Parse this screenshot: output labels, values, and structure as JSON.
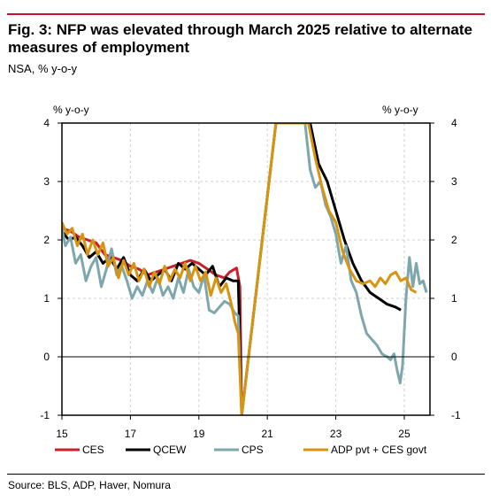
{
  "title": "Fig. 3: NFP was elevated through March 2025 relative to alternate measures of employment",
  "subtitle": "NSA, % y-o-y",
  "source": "Source: BLS, ADP, Haver, Nomura",
  "colors": {
    "accent_rule": "#c8102e",
    "grid": "#d0d0d0"
  },
  "chart_data": {
    "type": "line",
    "ylabel_left": "% y-o-y",
    "ylabel_right": "% y-o-y",
    "xlim": [
      2015,
      2025.75
    ],
    "ylim": [
      -1,
      4
    ],
    "xticks": [
      2015,
      2017,
      2019,
      2021,
      2023,
      2025
    ],
    "xtick_labels": [
      "15",
      "17",
      "19",
      "21",
      "23",
      "25"
    ],
    "yticks": [
      -1,
      0,
      1,
      2,
      3,
      4
    ],
    "ytick_labels": [
      "-1",
      "0",
      "1",
      "2",
      "3",
      "4"
    ],
    "grid": true,
    "legend_position": "bottom",
    "series": [
      {
        "name": "CES",
        "color": "#c8202a",
        "points": [
          [
            2015.0,
            2.2
          ],
          [
            2015.25,
            2.15
          ],
          [
            2015.5,
            2.05
          ],
          [
            2015.75,
            2.0
          ],
          [
            2016.0,
            1.95
          ],
          [
            2016.25,
            1.75
          ],
          [
            2016.5,
            1.7
          ],
          [
            2016.75,
            1.65
          ],
          [
            2017.0,
            1.55
          ],
          [
            2017.25,
            1.5
          ],
          [
            2017.5,
            1.4
          ],
          [
            2017.75,
            1.45
          ],
          [
            2018.0,
            1.5
          ],
          [
            2018.25,
            1.55
          ],
          [
            2018.5,
            1.6
          ],
          [
            2018.75,
            1.65
          ],
          [
            2019.0,
            1.6
          ],
          [
            2019.25,
            1.5
          ],
          [
            2019.5,
            1.4
          ],
          [
            2019.75,
            1.35
          ],
          [
            2019.9,
            1.45
          ],
          [
            2020.1,
            1.52
          ],
          [
            2020.2,
            1.2
          ],
          [
            2020.25,
            -1.0
          ]
        ]
      },
      {
        "name": "QCEW",
        "color": "#000000",
        "points": [
          [
            2015.0,
            2.15
          ],
          [
            2015.2,
            2.0
          ],
          [
            2015.4,
            2.05
          ],
          [
            2015.6,
            1.9
          ],
          [
            2015.8,
            1.7
          ],
          [
            2016.0,
            1.8
          ],
          [
            2016.2,
            1.6
          ],
          [
            2016.4,
            1.7
          ],
          [
            2016.6,
            1.5
          ],
          [
            2016.8,
            1.7
          ],
          [
            2017.0,
            1.4
          ],
          [
            2017.2,
            1.3
          ],
          [
            2017.4,
            1.5
          ],
          [
            2017.6,
            1.3
          ],
          [
            2017.8,
            1.4
          ],
          [
            2018.0,
            1.5
          ],
          [
            2018.2,
            1.3
          ],
          [
            2018.4,
            1.6
          ],
          [
            2018.6,
            1.5
          ],
          [
            2018.8,
            1.6
          ],
          [
            2019.0,
            1.5
          ],
          [
            2019.2,
            1.4
          ],
          [
            2019.4,
            1.55
          ],
          [
            2019.6,
            1.2
          ],
          [
            2019.8,
            1.35
          ],
          [
            2020.0,
            1.3
          ],
          [
            2020.15,
            1.3
          ],
          [
            2020.25,
            -1.0
          ],
          [
            2021.25,
            4.0
          ],
          [
            2022.25,
            4.0
          ],
          [
            2022.5,
            3.3
          ],
          [
            2022.75,
            3.0
          ],
          [
            2023.0,
            2.5
          ],
          [
            2023.25,
            2.0
          ],
          [
            2023.5,
            1.6
          ],
          [
            2023.75,
            1.3
          ],
          [
            2024.0,
            1.1
          ],
          [
            2024.25,
            1.0
          ],
          [
            2024.5,
            0.9
          ],
          [
            2024.75,
            0.85
          ],
          [
            2024.9,
            0.8
          ]
        ]
      },
      {
        "name": "CPS",
        "color": "#7ea6ad",
        "points": [
          [
            2015.0,
            2.2
          ],
          [
            2015.1,
            1.9
          ],
          [
            2015.25,
            2.05
          ],
          [
            2015.4,
            1.6
          ],
          [
            2015.55,
            1.75
          ],
          [
            2015.7,
            1.3
          ],
          [
            2015.85,
            1.55
          ],
          [
            2016.0,
            1.7
          ],
          [
            2016.15,
            1.2
          ],
          [
            2016.3,
            1.5
          ],
          [
            2016.45,
            1.85
          ],
          [
            2016.6,
            1.4
          ],
          [
            2016.75,
            1.55
          ],
          [
            2016.9,
            1.3
          ],
          [
            2017.05,
            1.0
          ],
          [
            2017.2,
            1.2
          ],
          [
            2017.35,
            1.05
          ],
          [
            2017.5,
            1.3
          ],
          [
            2017.65,
            1.1
          ],
          [
            2017.8,
            1.35
          ],
          [
            2017.95,
            1.05
          ],
          [
            2018.1,
            1.2
          ],
          [
            2018.25,
            1.0
          ],
          [
            2018.4,
            1.35
          ],
          [
            2018.55,
            1.1
          ],
          [
            2018.7,
            1.5
          ],
          [
            2018.85,
            1.2
          ],
          [
            2019.0,
            1.1
          ],
          [
            2019.15,
            1.4
          ],
          [
            2019.3,
            0.8
          ],
          [
            2019.45,
            0.75
          ],
          [
            2019.6,
            0.85
          ],
          [
            2019.75,
            0.95
          ],
          [
            2019.9,
            0.9
          ],
          [
            2020.05,
            0.75
          ],
          [
            2020.15,
            0.7
          ],
          [
            2020.25,
            -1.0
          ],
          [
            2021.25,
            4.0
          ],
          [
            2022.1,
            4.0
          ],
          [
            2022.25,
            3.2
          ],
          [
            2022.4,
            2.9
          ],
          [
            2022.55,
            3.0
          ],
          [
            2022.7,
            2.6
          ],
          [
            2022.85,
            2.4
          ],
          [
            2023.0,
            2.1
          ],
          [
            2023.15,
            1.6
          ],
          [
            2023.3,
            1.9
          ],
          [
            2023.45,
            1.3
          ],
          [
            2023.6,
            1.1
          ],
          [
            2023.75,
            0.7
          ],
          [
            2023.9,
            0.4
          ],
          [
            2024.05,
            0.3
          ],
          [
            2024.2,
            0.2
          ],
          [
            2024.35,
            0.05
          ],
          [
            2024.5,
            0.0
          ],
          [
            2024.6,
            -0.05
          ],
          [
            2024.7,
            0.05
          ],
          [
            2024.8,
            -0.25
          ],
          [
            2024.88,
            -0.45
          ],
          [
            2024.95,
            -0.15
          ],
          [
            2025.05,
            1.0
          ],
          [
            2025.15,
            1.7
          ],
          [
            2025.25,
            1.2
          ],
          [
            2025.35,
            1.6
          ],
          [
            2025.45,
            1.25
          ],
          [
            2025.55,
            1.3
          ],
          [
            2025.65,
            1.1
          ]
        ]
      },
      {
        "name": "ADP pvt + CES govt",
        "color": "#d9940f",
        "points": [
          [
            2015.0,
            2.3
          ],
          [
            2015.15,
            2.1
          ],
          [
            2015.3,
            2.2
          ],
          [
            2015.45,
            1.9
          ],
          [
            2015.6,
            2.1
          ],
          [
            2015.75,
            1.75
          ],
          [
            2015.9,
            2.0
          ],
          [
            2016.05,
            1.75
          ],
          [
            2016.2,
            1.95
          ],
          [
            2016.35,
            1.55
          ],
          [
            2016.5,
            1.7
          ],
          [
            2016.65,
            1.35
          ],
          [
            2016.8,
            1.65
          ],
          [
            2016.95,
            1.4
          ],
          [
            2017.1,
            1.6
          ],
          [
            2017.25,
            1.3
          ],
          [
            2017.4,
            1.5
          ],
          [
            2017.55,
            1.2
          ],
          [
            2017.7,
            1.45
          ],
          [
            2017.85,
            1.25
          ],
          [
            2018.0,
            1.55
          ],
          [
            2018.15,
            1.3
          ],
          [
            2018.3,
            1.5
          ],
          [
            2018.45,
            1.35
          ],
          [
            2018.6,
            1.6
          ],
          [
            2018.75,
            1.3
          ],
          [
            2018.9,
            1.55
          ],
          [
            2019.05,
            1.3
          ],
          [
            2019.2,
            1.45
          ],
          [
            2019.35,
            1.05
          ],
          [
            2019.5,
            1.35
          ],
          [
            2019.65,
            1.1
          ],
          [
            2019.8,
            1.25
          ],
          [
            2019.95,
            0.9
          ],
          [
            2020.05,
            0.6
          ],
          [
            2020.15,
            0.4
          ],
          [
            2020.25,
            -1.0
          ],
          [
            2021.25,
            4.0
          ],
          [
            2022.2,
            4.0
          ],
          [
            2022.4,
            3.4
          ],
          [
            2022.6,
            2.9
          ],
          [
            2022.8,
            2.5
          ],
          [
            2023.0,
            2.3
          ],
          [
            2023.2,
            1.8
          ],
          [
            2023.4,
            1.5
          ],
          [
            2023.6,
            1.3
          ],
          [
            2023.8,
            1.25
          ],
          [
            2024.0,
            1.3
          ],
          [
            2024.15,
            1.2
          ],
          [
            2024.3,
            1.35
          ],
          [
            2024.45,
            1.25
          ],
          [
            2024.6,
            1.4
          ],
          [
            2024.75,
            1.45
          ],
          [
            2024.9,
            1.3
          ],
          [
            2025.05,
            1.35
          ],
          [
            2025.2,
            1.15
          ],
          [
            2025.35,
            1.1
          ]
        ]
      }
    ]
  }
}
